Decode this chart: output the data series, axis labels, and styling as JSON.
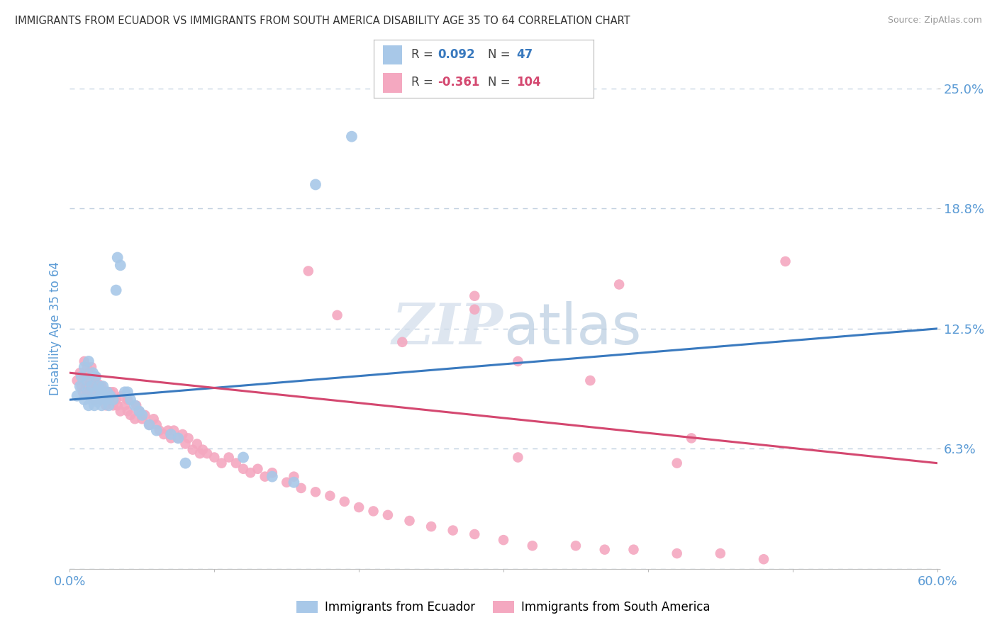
{
  "title": "IMMIGRANTS FROM ECUADOR VS IMMIGRANTS FROM SOUTH AMERICA DISABILITY AGE 35 TO 64 CORRELATION CHART",
  "source": "Source: ZipAtlas.com",
  "ylabel": "Disability Age 35 to 64",
  "xmin": 0.0,
  "xmax": 0.6,
  "ymin": 0.0,
  "ymax": 0.25,
  "yticks": [
    0.0,
    0.0625,
    0.125,
    0.1875,
    0.25
  ],
  "ytick_labels": [
    "",
    "6.3%",
    "12.5%",
    "18.8%",
    "25.0%"
  ],
  "xticks": [
    0.0,
    0.1,
    0.2,
    0.3,
    0.4,
    0.5,
    0.6
  ],
  "xtick_labels": [
    "0.0%",
    "",
    "",
    "",
    "",
    "",
    "60.0%"
  ],
  "series1_color": "#a8c8e8",
  "series2_color": "#f4a8c0",
  "line1_color": "#3a7abf",
  "line2_color": "#d44870",
  "R1": 0.092,
  "N1": 47,
  "R2": -0.361,
  "N2": 104,
  "legend1": "Immigrants from Ecuador",
  "legend2": "Immigrants from South America",
  "background_color": "#ffffff",
  "grid_color": "#c0cfe0",
  "title_color": "#333333",
  "axis_label_color": "#5b9bd5",
  "tick_label_color": "#5b9bd5",
  "line1_x0": 0.0,
  "line1_y0": 0.088,
  "line1_x1": 0.6,
  "line1_y1": 0.125,
  "line2_x0": 0.0,
  "line2_y0": 0.102,
  "line2_x1": 0.6,
  "line2_y1": 0.055,
  "ecuador_x": [
    0.005,
    0.007,
    0.008,
    0.01,
    0.01,
    0.012,
    0.012,
    0.013,
    0.013,
    0.015,
    0.015,
    0.016,
    0.017,
    0.018,
    0.018,
    0.019,
    0.02,
    0.02,
    0.021,
    0.022,
    0.022,
    0.023,
    0.024,
    0.025,
    0.026,
    0.027,
    0.028,
    0.03,
    0.032,
    0.033,
    0.035,
    0.038,
    0.04,
    0.042,
    0.045,
    0.048,
    0.05,
    0.055,
    0.06,
    0.07,
    0.075,
    0.08,
    0.12,
    0.14,
    0.155,
    0.17,
    0.195
  ],
  "ecuador_y": [
    0.09,
    0.095,
    0.1,
    0.105,
    0.088,
    0.092,
    0.098,
    0.085,
    0.108,
    0.088,
    0.095,
    0.102,
    0.085,
    0.092,
    0.1,
    0.087,
    0.088,
    0.095,
    0.09,
    0.085,
    0.092,
    0.095,
    0.09,
    0.088,
    0.092,
    0.085,
    0.09,
    0.088,
    0.145,
    0.162,
    0.158,
    0.092,
    0.092,
    0.088,
    0.085,
    0.082,
    0.08,
    0.075,
    0.072,
    0.07,
    0.068,
    0.055,
    0.058,
    0.048,
    0.045,
    0.2,
    0.225
  ],
  "sa_x": [
    0.005,
    0.007,
    0.008,
    0.009,
    0.01,
    0.01,
    0.011,
    0.012,
    0.012,
    0.013,
    0.013,
    0.014,
    0.015,
    0.015,
    0.016,
    0.017,
    0.018,
    0.018,
    0.019,
    0.02,
    0.02,
    0.021,
    0.022,
    0.022,
    0.023,
    0.024,
    0.025,
    0.026,
    0.027,
    0.028,
    0.03,
    0.03,
    0.032,
    0.033,
    0.035,
    0.036,
    0.038,
    0.04,
    0.04,
    0.042,
    0.045,
    0.046,
    0.048,
    0.05,
    0.052,
    0.055,
    0.058,
    0.06,
    0.062,
    0.065,
    0.068,
    0.07,
    0.072,
    0.075,
    0.078,
    0.08,
    0.082,
    0.085,
    0.088,
    0.09,
    0.092,
    0.095,
    0.1,
    0.105,
    0.11,
    0.115,
    0.12,
    0.125,
    0.13,
    0.135,
    0.14,
    0.15,
    0.155,
    0.16,
    0.17,
    0.18,
    0.19,
    0.2,
    0.21,
    0.22,
    0.235,
    0.25,
    0.265,
    0.28,
    0.3,
    0.32,
    0.35,
    0.37,
    0.39,
    0.42,
    0.45,
    0.48,
    0.31,
    0.42,
    0.165,
    0.28,
    0.38,
    0.43,
    0.185,
    0.28,
    0.31,
    0.36,
    0.23,
    0.495
  ],
  "sa_y": [
    0.098,
    0.102,
    0.095,
    0.092,
    0.1,
    0.108,
    0.095,
    0.105,
    0.092,
    0.102,
    0.095,
    0.098,
    0.09,
    0.105,
    0.092,
    0.088,
    0.095,
    0.1,
    0.092,
    0.09,
    0.096,
    0.092,
    0.088,
    0.095,
    0.09,
    0.088,
    0.085,
    0.092,
    0.088,
    0.092,
    0.085,
    0.092,
    0.088,
    0.085,
    0.082,
    0.09,
    0.085,
    0.082,
    0.088,
    0.08,
    0.078,
    0.085,
    0.082,
    0.078,
    0.08,
    0.075,
    0.078,
    0.075,
    0.072,
    0.07,
    0.072,
    0.068,
    0.072,
    0.068,
    0.07,
    0.065,
    0.068,
    0.062,
    0.065,
    0.06,
    0.062,
    0.06,
    0.058,
    0.055,
    0.058,
    0.055,
    0.052,
    0.05,
    0.052,
    0.048,
    0.05,
    0.045,
    0.048,
    0.042,
    0.04,
    0.038,
    0.035,
    0.032,
    0.03,
    0.028,
    0.025,
    0.022,
    0.02,
    0.018,
    0.015,
    0.012,
    0.012,
    0.01,
    0.01,
    0.008,
    0.008,
    0.005,
    0.058,
    0.055,
    0.155,
    0.142,
    0.148,
    0.068,
    0.132,
    0.135,
    0.108,
    0.098,
    0.118,
    0.16
  ]
}
